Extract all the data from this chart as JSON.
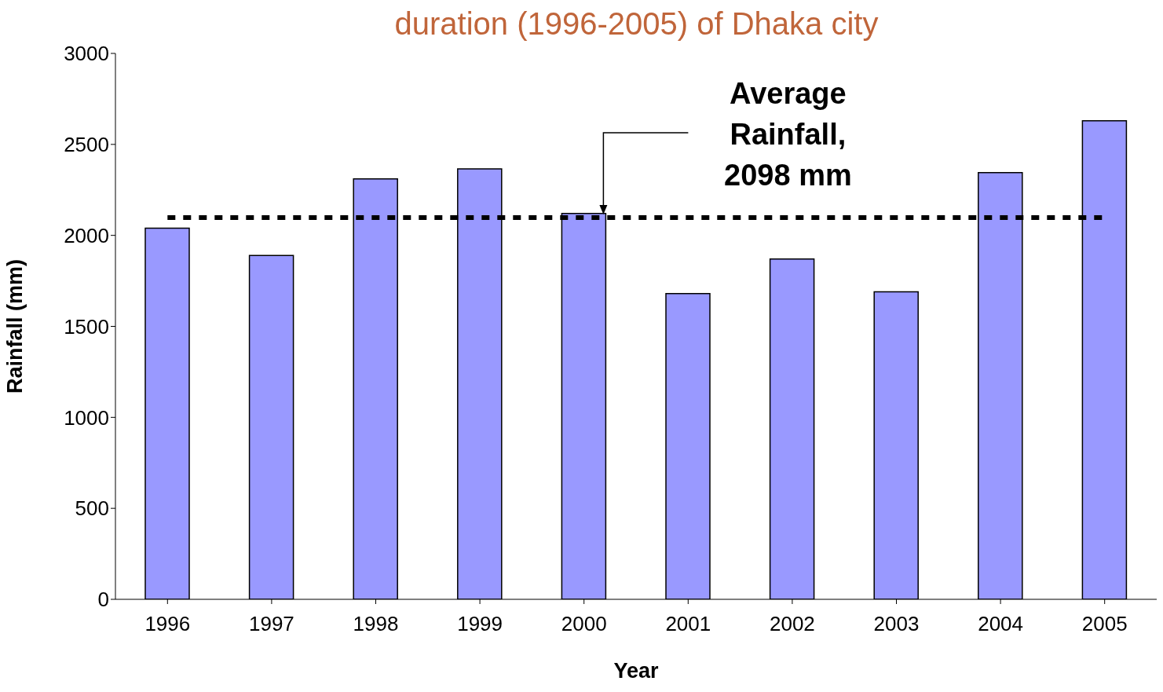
{
  "chart_data": {
    "type": "bar",
    "title": "duration (1996-2005) of Dhaka city",
    "xlabel": "Year",
    "ylabel": "Rainfall (mm)",
    "categories": [
      "1996",
      "1997",
      "1998",
      "1999",
      "2000",
      "2001",
      "2002",
      "2003",
      "2004",
      "2005"
    ],
    "values": [
      2040,
      1890,
      2310,
      2365,
      2120,
      1680,
      1870,
      1690,
      2345,
      2630
    ],
    "color": "#9999ff",
    "ylim": [
      0,
      3000
    ],
    "yticks": [
      0,
      500,
      1000,
      1500,
      2000,
      2500,
      3000
    ],
    "grid": false,
    "legend": false,
    "ref_lines": [
      {
        "axis": "y",
        "value": 2098,
        "label": "Average\nRainfall,\n2098 mm",
        "color": "#000000",
        "line_style": "dashed"
      }
    ]
  }
}
